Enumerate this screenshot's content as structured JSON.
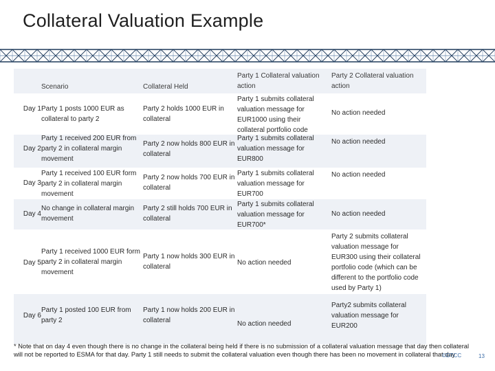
{
  "title": "Collateral Valuation Example",
  "header": {
    "scenario": "Scenario",
    "collateral_held": "Collateral Held",
    "party1": "Party 1 Collateral valuation action",
    "party2": "Party 2 Collateral valuation action"
  },
  "rows": [
    {
      "day": "Day 1",
      "scenario": "Party 1 posts 1000 EUR as collateral to party 2",
      "collateral": "Party 2 holds 1000 EUR in collateral",
      "party1": "Party 1 submits collateral valuation message for EUR1000 using their collateral portfolio code",
      "party2": "No action needed"
    },
    {
      "day": "Day 2",
      "scenario": "Party 1 received 200 EUR from party 2 in collateral margin movement",
      "collateral": "Party 2 now holds 800 EUR in collateral",
      "party1": "Party 1 submits collateral valuation message for EUR800",
      "party2": "No action needed"
    },
    {
      "day": "Day 3",
      "scenario": "Party 1 received 100 EUR form party 2 in collateral margin movement",
      "collateral": "Party 2 now holds 700 EUR in collateral",
      "party1": "Party 1 submits collateral valuation message for EUR700",
      "party2": "No action needed"
    },
    {
      "day": "Day 4",
      "scenario": "No change in collateral margin movement",
      "collateral": "Party 2 still holds 700 EUR in collateral",
      "party1": "Party 1 submits collateral valuation message for EUR700*",
      "party2": "No action needed"
    },
    {
      "day": "Day 5",
      "scenario": "Party 1 received 1000 EUR form party 2 in collateral margin movement",
      "collateral": "Party 1 now holds 300 EUR in collateral",
      "party1": "No action needed",
      "party2": "Party 2 submits collateral valuation message for EUR300 using their collateral portfolio code (which can be different to the portfolio code used by Party 1)"
    },
    {
      "day": "Day 6",
      "scenario": "Party 1 posted 100 EUR from party 2",
      "collateral": "Party 1 now holds 200 EUR in collateral",
      "party1": "No action needed",
      "party2": "Party2 submits collateral valuation message for EUR200"
    }
  ],
  "footnote": "* Note that on day 4 even though there is no change in the collateral being held if there is no submission of a collateral valuation message that day then collateral will not be reported to ESMA for that day. Party 1 still needs to submit the collateral valuation even though there has been no movement in collateral that day",
  "logo_text": "©DTCC",
  "page_number": "13",
  "colors": {
    "row_shade": "#eef1f6",
    "band_dark": "#1f3a5a",
    "band_accent": "#5b7fa6",
    "footer_accent": "#3d6ea8"
  }
}
